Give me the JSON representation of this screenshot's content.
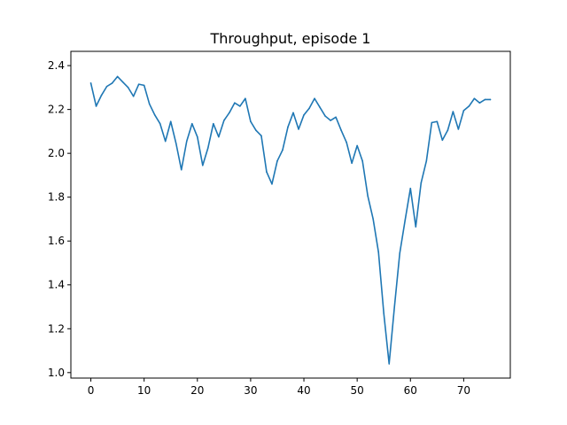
{
  "chart_data": {
    "type": "line",
    "title": "Throughput, episode 1",
    "xlabel": "",
    "ylabel": "",
    "xlim": [
      -3.75,
      78.75
    ],
    "ylim": [
      0.975,
      2.465
    ],
    "x_ticks": [
      0,
      10,
      20,
      30,
      40,
      50,
      60,
      70
    ],
    "y_ticks": [
      1.0,
      1.2,
      1.4,
      1.6,
      1.8,
      2.0,
      2.2,
      2.4
    ],
    "grid": false,
    "legend": "none",
    "colors": {
      "series": "#1f77b4"
    },
    "series": [
      {
        "x": [
          0,
          1,
          2,
          3,
          4,
          5,
          6,
          7,
          8,
          9,
          10,
          11,
          12,
          13,
          14,
          15,
          16,
          17,
          18,
          19,
          20,
          21,
          22,
          23,
          24,
          25,
          26,
          27,
          28,
          29,
          30,
          31,
          32,
          33,
          34,
          35,
          36,
          37,
          38,
          39,
          40,
          41,
          42,
          43,
          44,
          45,
          46,
          47,
          48,
          49,
          50,
          51,
          52,
          53,
          54,
          55,
          56,
          57,
          58,
          59,
          60,
          61,
          62,
          63,
          64,
          65,
          66,
          67,
          68,
          69,
          70,
          71,
          72,
          73,
          74,
          75
        ],
        "values": [
          2.32,
          2.215,
          2.265,
          2.305,
          2.32,
          2.35,
          2.325,
          2.3,
          2.26,
          2.315,
          2.31,
          2.225,
          2.175,
          2.135,
          2.055,
          2.145,
          2.045,
          1.925,
          2.055,
          2.135,
          2.075,
          1.945,
          2.025,
          2.135,
          2.075,
          2.15,
          2.185,
          2.23,
          2.215,
          2.25,
          2.145,
          2.105,
          2.08,
          1.915,
          1.86,
          1.965,
          2.015,
          2.12,
          2.185,
          2.11,
          2.175,
          2.205,
          2.25,
          2.21,
          2.17,
          2.15,
          2.165,
          2.105,
          2.05,
          1.955,
          2.035,
          1.965,
          1.805,
          1.7,
          1.55,
          1.27,
          1.04,
          1.3,
          1.545,
          1.695,
          1.84,
          1.665,
          1.865,
          1.965,
          2.14,
          2.145,
          2.06,
          2.105,
          2.19,
          2.11,
          2.195,
          2.215,
          2.25,
          2.23,
          2.245,
          2.245
        ]
      }
    ]
  }
}
